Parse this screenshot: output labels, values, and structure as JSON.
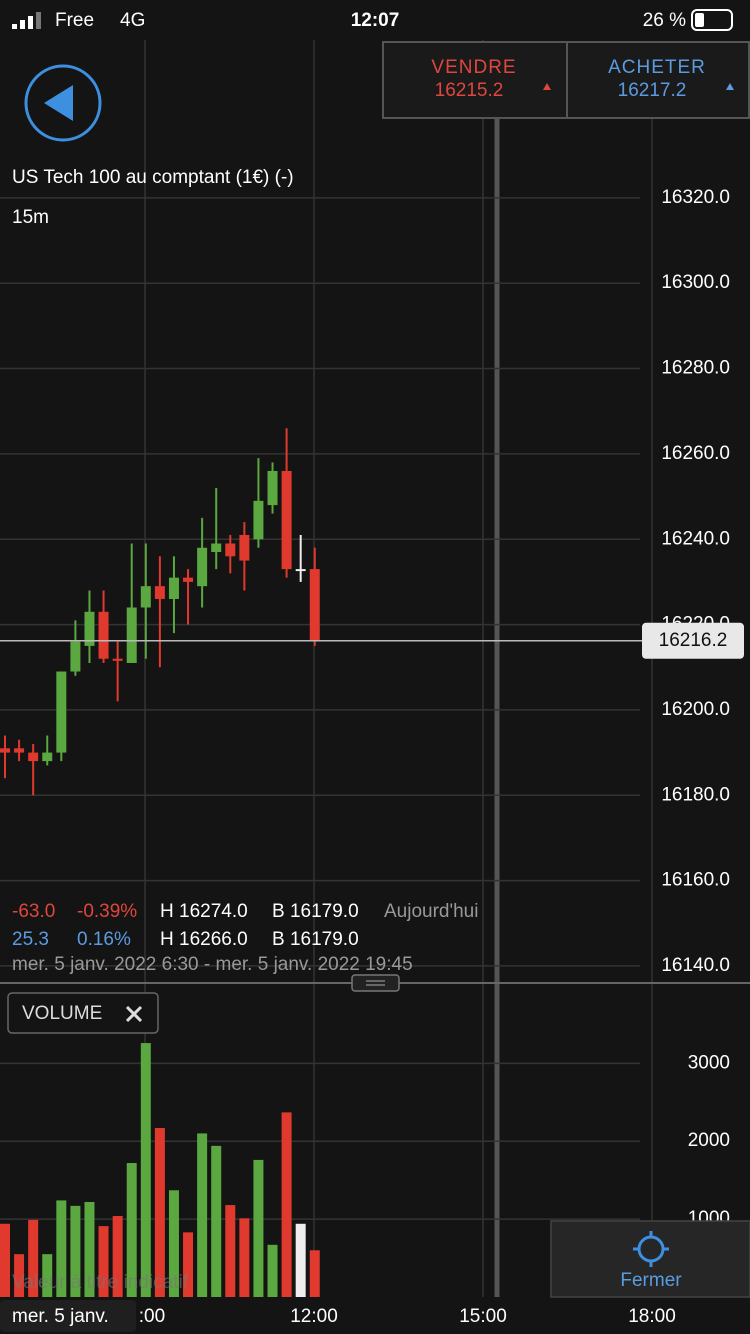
{
  "status_bar": {
    "carrier": "Free",
    "network": "4G",
    "time": "12:07",
    "battery": "26 %"
  },
  "trade": {
    "sell_label": "VENDRE",
    "sell_price": "16215.2",
    "buy_label": "ACHETER",
    "buy_price": "16217.2"
  },
  "stats": {
    "row1": [
      "-63.0",
      "-0.39%",
      "H 16274.0",
      "B 16179.0",
      "Aujourd'hui"
    ],
    "row2": [
      "25.3",
      "0.16%",
      "H 16266.0",
      "B 16179.0"
    ],
    "range": "mer. 5 janv. 2022 6:30 - mer. 5 janv. 2022 19:45"
  },
  "disclaimer": "Valeur à titre indicatif",
  "close_button": "Fermer",
  "chart_data": [
    {
      "type": "candlestick",
      "title": "US Tech 100 au comptant (1€) (-)",
      "subtitle": "15m",
      "open": [
        16191,
        16191,
        16190,
        16188,
        16190,
        16209,
        16215,
        16223,
        16212,
        16211,
        16224,
        16229,
        16226,
        16231,
        16229,
        16237,
        16239,
        16241,
        16240,
        16248,
        16256,
        16233,
        16233
      ],
      "high": [
        16194,
        16193,
        16192,
        16194,
        16209,
        16221,
        16228,
        16228,
        16216,
        16239,
        16239,
        16236,
        16236,
        16233,
        16245,
        16252,
        16241,
        16244,
        16259,
        16258,
        16266,
        16241,
        16238
      ],
      "low": [
        16184,
        16188,
        16180,
        16187,
        16188,
        16208,
        16211,
        16211,
        16202,
        16211,
        16212,
        16210,
        16218,
        16220,
        16224,
        16233,
        16232,
        16228,
        16238,
        16246,
        16231,
        16230,
        16215
      ],
      "close": [
        16190,
        16190,
        16188,
        16190,
        16209,
        16216,
        16223,
        16212,
        16211.5,
        16224,
        16229,
        16226,
        16231,
        16230,
        16238,
        16239,
        16236,
        16235,
        16249,
        16256,
        16233,
        16233,
        16216.2
      ],
      "colors": {
        "up": "#5aa83f",
        "down": "#e0392e",
        "flat": "#eeeeee"
      },
      "current_price": 16216.2,
      "ylim": [
        16136,
        16357
      ],
      "yticks": [
        {
          "value": 16140,
          "label": "16140.0"
        },
        {
          "value": 16160,
          "label": "16160.0"
        },
        {
          "value": 16180,
          "label": "16180.0"
        },
        {
          "value": 16200,
          "label": "16200.0"
        },
        {
          "value": 16220,
          "label": "16220.0"
        },
        {
          "value": 16240,
          "label": "16240.0"
        },
        {
          "value": 16260,
          "label": "16260.0"
        },
        {
          "value": 16280,
          "label": "16280.0"
        },
        {
          "value": 16300,
          "label": "16300.0"
        },
        {
          "value": 16320,
          "label": "16320.0"
        }
      ],
      "x_axis_labels": [
        "mer. 5 janv.",
        ":00",
        "12:00",
        "15:00",
        "18:00"
      ],
      "grid": true
    },
    {
      "type": "bar",
      "title": "VOLUME",
      "values": [
        940,
        550,
        990,
        550,
        1240,
        1170,
        1220,
        910,
        1040,
        1720,
        3260,
        2170,
        1370,
        830,
        2100,
        1940,
        1180,
        1010,
        1760,
        670,
        2370,
        940,
        600
      ],
      "ylim": [
        0,
        3800
      ],
      "yticks": [
        1000,
        2000,
        3000
      ],
      "grid": true
    }
  ]
}
